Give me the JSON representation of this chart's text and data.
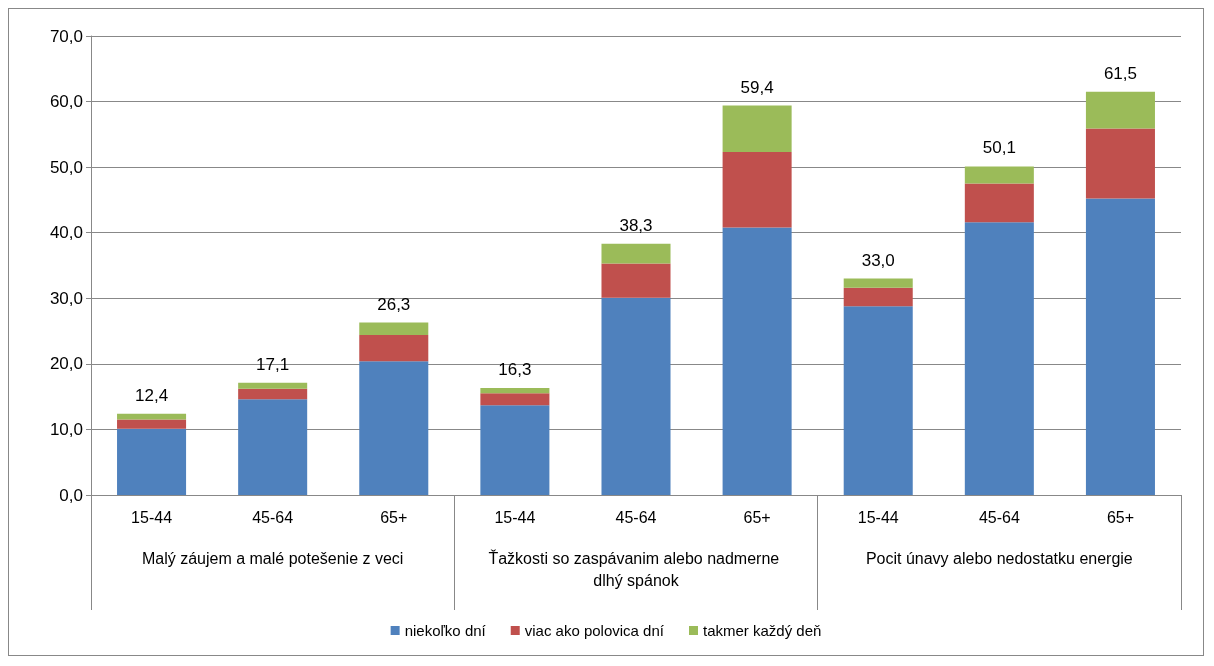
{
  "chart_data": {
    "type": "bar",
    "stacked": true,
    "categories": [
      "15-44",
      "45-64",
      "65+",
      "15-44",
      "45-64",
      "65+",
      "15-44",
      "45-64",
      "65+"
    ],
    "annotations": [
      "Malý záujem a malé potešenie z veci",
      "Ťažkosti so zaspávanim alebo nadmerne dlhý spánok",
      "Pocit únavy alebo nedostatku energie"
    ],
    "series": [
      {
        "name": "niekoľko dní",
        "color": "#4f81bd",
        "values": [
          10.1,
          14.6,
          20.4,
          13.7,
          30.1,
          40.8,
          28.8,
          41.6,
          45.2
        ]
      },
      {
        "name": "viac ako polovica dní",
        "color": "#c0504d",
        "values": [
          1.4,
          1.6,
          4.0,
          1.8,
          5.2,
          11.5,
          2.8,
          5.9,
          10.7
        ]
      },
      {
        "name": "takmer každý deň",
        "color": "#9bbb59",
        "values": [
          0.9,
          0.9,
          1.9,
          0.8,
          3.0,
          7.1,
          1.4,
          2.6,
          5.6
        ]
      }
    ],
    "totals": [
      "12,4",
      "17,1",
      "26,3",
      "16,3",
      "38,3",
      "59,4",
      "33,0",
      "50,1",
      "61,5"
    ],
    "ylim": [
      0,
      70
    ],
    "yticks": [
      {
        "value": 0,
        "label": "0,0"
      },
      {
        "value": 10,
        "label": "10,0"
      },
      {
        "value": 20,
        "label": "20,0"
      },
      {
        "value": 30,
        "label": "30,0"
      },
      {
        "value": 40,
        "label": "40,0"
      },
      {
        "value": 50,
        "label": "50,0"
      },
      {
        "value": 60,
        "label": "60,0"
      },
      {
        "value": 70,
        "label": "70,0"
      }
    ],
    "grid": "y",
    "legend": "bottom"
  }
}
